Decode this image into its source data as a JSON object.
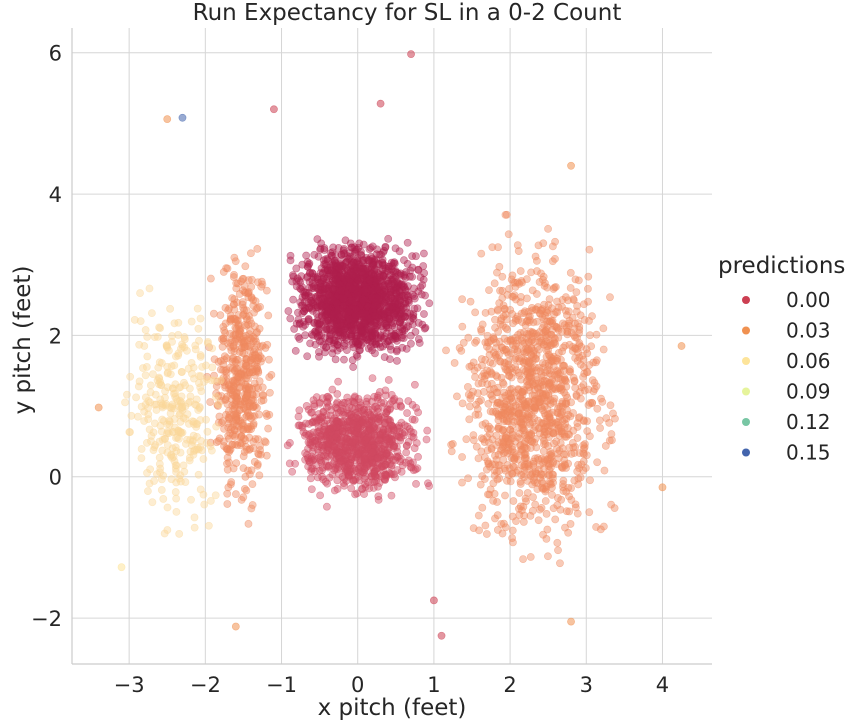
{
  "chart_data": {
    "type": "scatter",
    "title": "Run Expectancy for SL in a 0-2 Count",
    "xlabel": "x pitch (feet)",
    "ylabel": "y pitch (feet)",
    "xlim": [
      -3.75,
      4.65
    ],
    "ylim": [
      -2.65,
      6.35
    ],
    "xticks": [
      -3,
      -2,
      -1,
      0,
      1,
      2,
      3,
      4
    ],
    "yticks": [
      -2,
      0,
      2,
      4,
      6
    ],
    "xtick_labels": [
      "−3",
      "−2",
      "−1",
      "0",
      "1",
      "2",
      "3",
      "4"
    ],
    "ytick_labels": [
      "−2",
      "0",
      "2",
      "4",
      "6"
    ],
    "grid": true,
    "legend": {
      "title": "predictions",
      "placement": "right",
      "entries": [
        {
          "label": "0.00",
          "color": "#cc3f52"
        },
        {
          "label": "0.03",
          "color": "#f09150"
        },
        {
          "label": "0.06",
          "color": "#fde49a"
        },
        {
          "label": "0.09",
          "color": "#e6f49b"
        },
        {
          "label": "0.12",
          "color": "#78c6a4"
        },
        {
          "label": "0.15",
          "color": "#4365ad"
        }
      ]
    },
    "point_alpha": 0.45,
    "approx_point_count": 5000,
    "regions": [
      {
        "name": "strike zone (pred ~0.00)",
        "x_range": [
          -1.05,
          1.05
        ],
        "y_range": [
          1.5,
          3.5
        ],
        "color": "#b0204e"
      },
      {
        "name": "center/low zone",
        "x_range": [
          -1.05,
          1.05
        ],
        "y_range": [
          -0.5,
          1.5
        ],
        "color": "#d04a62"
      },
      {
        "name": "right of zone (pred ~0.03)",
        "x_range": [
          1.05,
          3.6
        ],
        "y_range": [
          -1.5,
          3.8
        ],
        "color": "#ef8a5f"
      },
      {
        "name": "left of zone (pred ~0.03)",
        "x_range": [
          -2.0,
          -1.05
        ],
        "y_range": [
          -0.8,
          3.6
        ],
        "color": "#ef8a5f"
      },
      {
        "name": "far left (pred ~0.06)",
        "x_range": [
          -3.2,
          -1.6
        ],
        "y_range": [
          -1.3,
          3.3
        ],
        "color": "#fbd79a"
      }
    ],
    "notable_points": [
      {
        "x": 0.7,
        "y": 5.98,
        "color": "#cc3f52"
      },
      {
        "x": -1.1,
        "y": 5.2,
        "color": "#cc3f52"
      },
      {
        "x": 0.3,
        "y": 5.28,
        "color": "#cc3f52"
      },
      {
        "x": -2.3,
        "y": 5.08,
        "color": "#4365ad"
      },
      {
        "x": -2.5,
        "y": 5.06,
        "color": "#f09150"
      },
      {
        "x": 4.25,
        "y": 1.85,
        "color": "#f09150"
      },
      {
        "x": 4.0,
        "y": -0.15,
        "color": "#f09150"
      },
      {
        "x": -3.4,
        "y": 0.98,
        "color": "#f09150"
      },
      {
        "x": -3.1,
        "y": -1.28,
        "color": "#fde49a"
      },
      {
        "x": 1.0,
        "y": -1.75,
        "color": "#cc3f52"
      },
      {
        "x": 1.1,
        "y": -2.25,
        "color": "#cc3f52"
      },
      {
        "x": -1.6,
        "y": -2.12,
        "color": "#f09150"
      },
      {
        "x": 2.8,
        "y": -2.05,
        "color": "#f09150"
      },
      {
        "x": 2.8,
        "y": 4.4,
        "color": "#f09150"
      }
    ]
  }
}
